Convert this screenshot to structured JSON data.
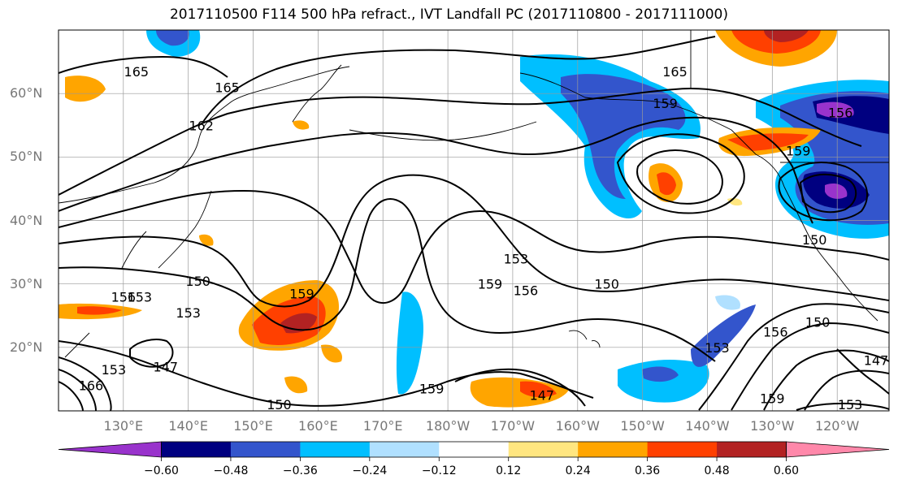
{
  "title": "2017110500 F114 500 hPa refract., IVT Landfall PC (2017110800 - 2017111000)",
  "lat_labels": [
    {
      "text": "60°N",
      "lat": 60
    },
    {
      "text": "50°N",
      "lat": 50
    },
    {
      "text": "40°N",
      "lat": 40
    },
    {
      "text": "30°N",
      "lat": 30
    },
    {
      "text": "20°N",
      "lat": 20
    }
  ],
  "lon_labels": [
    {
      "text": "130°E",
      "lon": 130
    },
    {
      "text": "140°E",
      "lon": 140
    },
    {
      "text": "150°E",
      "lon": 150
    },
    {
      "text": "160°E",
      "lon": 160
    },
    {
      "text": "170°E",
      "lon": 170
    },
    {
      "text": "180°W",
      "lon": 180
    },
    {
      "text": "170°W",
      "lon": 190
    },
    {
      "text": "160°W",
      "lon": 200
    },
    {
      "text": "150°W",
      "lon": 210
    },
    {
      "text": "140°W",
      "lon": 220
    },
    {
      "text": "130°W",
      "lon": 230
    },
    {
      "text": "120°W",
      "lon": 240
    }
  ],
  "map_extent": {
    "lon_min": 120,
    "lon_max": 248,
    "lat_min": 10,
    "lat_max": 70
  },
  "colorbar": {
    "colors": [
      "#9933cc",
      "#000080",
      "#3355cc",
      "#00bfff",
      "#b0e0ff",
      "#ffffff",
      "#ffe680",
      "#ffa500",
      "#ff4000",
      "#b22222",
      "#ff88aa"
    ],
    "ticks": [
      "−0.60",
      "−0.48",
      "−0.36",
      "−0.24",
      "−0.12",
      "0.12",
      "0.24",
      "0.36",
      "0.48",
      "0.60"
    ]
  },
  "contour_labels": [
    {
      "text": "165",
      "lon": 132,
      "lat": 63.5
    },
    {
      "text": "165",
      "lon": 146,
      "lat": 61
    },
    {
      "text": "162",
      "lon": 142,
      "lat": 55
    },
    {
      "text": "165",
      "lon": 215,
      "lat": 63.5
    },
    {
      "text": "159",
      "lon": 213.5,
      "lat": 58.5
    },
    {
      "text": "156",
      "lon": 240.5,
      "lat": 57
    },
    {
      "text": "159",
      "lon": 234,
      "lat": 51
    },
    {
      "text": "153",
      "lon": 190.5,
      "lat": 34
    },
    {
      "text": "150",
      "lon": 141.5,
      "lat": 30.5
    },
    {
      "text": "153",
      "lon": 132.5,
      "lat": 28
    },
    {
      "text": "156",
      "lon": 130,
      "lat": 28
    },
    {
      "text": "159",
      "lon": 157.5,
      "lat": 28.5
    },
    {
      "text": "153",
      "lon": 140,
      "lat": 25.5
    },
    {
      "text": "159",
      "lon": 186.5,
      "lat": 30
    },
    {
      "text": "156",
      "lon": 192,
      "lat": 29
    },
    {
      "text": "150",
      "lon": 204.5,
      "lat": 30
    },
    {
      "text": "150",
      "lon": 236.5,
      "lat": 37
    },
    {
      "text": "150",
      "lon": 237,
      "lat": 24
    },
    {
      "text": "156",
      "lon": 230.5,
      "lat": 22.5
    },
    {
      "text": "153",
      "lon": 221.5,
      "lat": 20
    },
    {
      "text": "147",
      "lon": 136.5,
      "lat": 17
    },
    {
      "text": "153",
      "lon": 128.5,
      "lat": 16.5
    },
    {
      "text": "166",
      "lon": 125,
      "lat": 14
    },
    {
      "text": "159",
      "lon": 177.5,
      "lat": 13.5
    },
    {
      "text": "147",
      "lon": 194.5,
      "lat": 12.5
    },
    {
      "text": "150",
      "lon": 154,
      "lat": 11
    },
    {
      "text": "159",
      "lon": 230,
      "lat": 12
    },
    {
      "text": "153",
      "lon": 242,
      "lat": 11
    },
    {
      "text": "147",
      "lon": 246,
      "lat": 18
    }
  ]
}
